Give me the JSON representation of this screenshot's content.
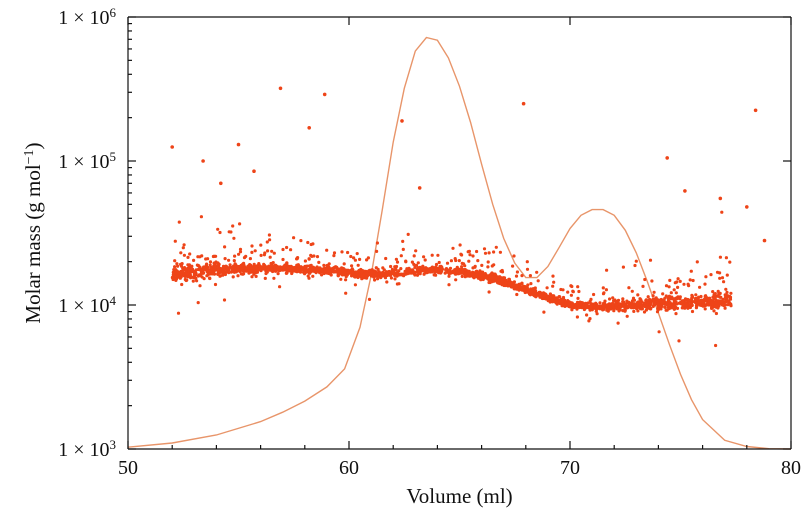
{
  "chart_data": {
    "type": "scatter",
    "xlabel": "Volume (ml)",
    "ylabel_main": "Molar mass (g mol",
    "ylabel_sup": "−1",
    "ylabel_close": ")",
    "xlim": [
      50,
      80
    ],
    "ylim": [
      1000,
      1000000
    ],
    "yscale": "log",
    "grid": false,
    "x_ticks": [
      50,
      60,
      70,
      80
    ],
    "y_ticks": [
      {
        "value": 1000,
        "base": "1 × 10",
        "exp": "3"
      },
      {
        "value": 10000,
        "base": "1 × 10",
        "exp": "4"
      },
      {
        "value": 100000,
        "base": "1 × 10",
        "exp": "5"
      },
      {
        "value": 1000000,
        "base": "1 × 10",
        "exp": "6"
      }
    ],
    "colors": {
      "points": "#ee4418",
      "curve": "#e8956a",
      "axis": "#111111"
    },
    "series": [
      {
        "kind": "line",
        "x": [
          50,
          52,
          54,
          56,
          57,
          58,
          59,
          59.8,
          60.5,
          61,
          61.5,
          62,
          62.5,
          63,
          63.5,
          64,
          64.5,
          65,
          65.5,
          66,
          66.5,
          67,
          67.5,
          68,
          68.5,
          69,
          69.5,
          70,
          70.5,
          71,
          71.5,
          72,
          72.5,
          73,
          73.5,
          74,
          74.5,
          75,
          75.5,
          76,
          77,
          78,
          79,
          80
        ],
        "y": [
          1030,
          1100,
          1250,
          1550,
          1800,
          2150,
          2700,
          3600,
          7000,
          16000,
          45000,
          135000,
          320000,
          580000,
          720000,
          690000,
          520000,
          330000,
          185000,
          95000,
          50000,
          29000,
          19500,
          15500,
          15500,
          18500,
          25000,
          34000,
          42000,
          46000,
          46000,
          42000,
          33000,
          23000,
          14500,
          8800,
          5300,
          3300,
          2200,
          1600,
          1150,
          1040,
          1005,
          1000
        ]
      },
      {
        "kind": "points",
        "trend_x": [
          52,
          53,
          54,
          55,
          56,
          57,
          58,
          59,
          60,
          61,
          62,
          63,
          64,
          65,
          66,
          67,
          68,
          69,
          70,
          71,
          72,
          73,
          74,
          75,
          76,
          77,
          77.3
        ],
        "trend_y": [
          16500,
          17000,
          17500,
          17800,
          18000,
          18000,
          17800,
          17300,
          16700,
          16200,
          16600,
          17300,
          17400,
          17000,
          16000,
          14500,
          12800,
          11200,
          10000,
          9700,
          9800,
          10000,
          10200,
          10300,
          10400,
          10600,
          10800
        ],
        "outliers_x": [
          52,
          56.9,
          58.2,
          58.9,
          62.4,
          63.2,
          67.9,
          74.4,
          75.2,
          78.0,
          78.4,
          78.8,
          55.0,
          53.4,
          54.2,
          55.7,
          76.8
        ],
        "outliers_y": [
          125000,
          320000,
          170000,
          290000,
          190000,
          65000,
          250000,
          105000,
          62000,
          48000,
          225000,
          28000,
          130000,
          100000,
          70000,
          85000,
          55000
        ]
      }
    ]
  }
}
